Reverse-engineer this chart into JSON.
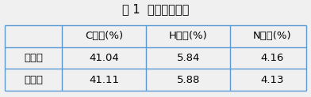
{
  "title": "表 1  元素分析结果",
  "col_headers": [
    "",
    "C：　(%)",
    "H：　(%)",
    "N：　(%)"
  ],
  "rows": [
    [
      "理论值",
      "41.04",
      "5.84",
      "4.16"
    ],
    [
      "实际值",
      "41.11",
      "5.88",
      "4.13"
    ]
  ],
  "bg_color": "#f0f0f0",
  "table_bg": "#ffffff",
  "border_color": "#5b9bd5",
  "title_fontsize": 10.5,
  "cell_fontsize": 9.5,
  "fig_width": 3.92,
  "fig_height": 1.23,
  "dpi": 100
}
